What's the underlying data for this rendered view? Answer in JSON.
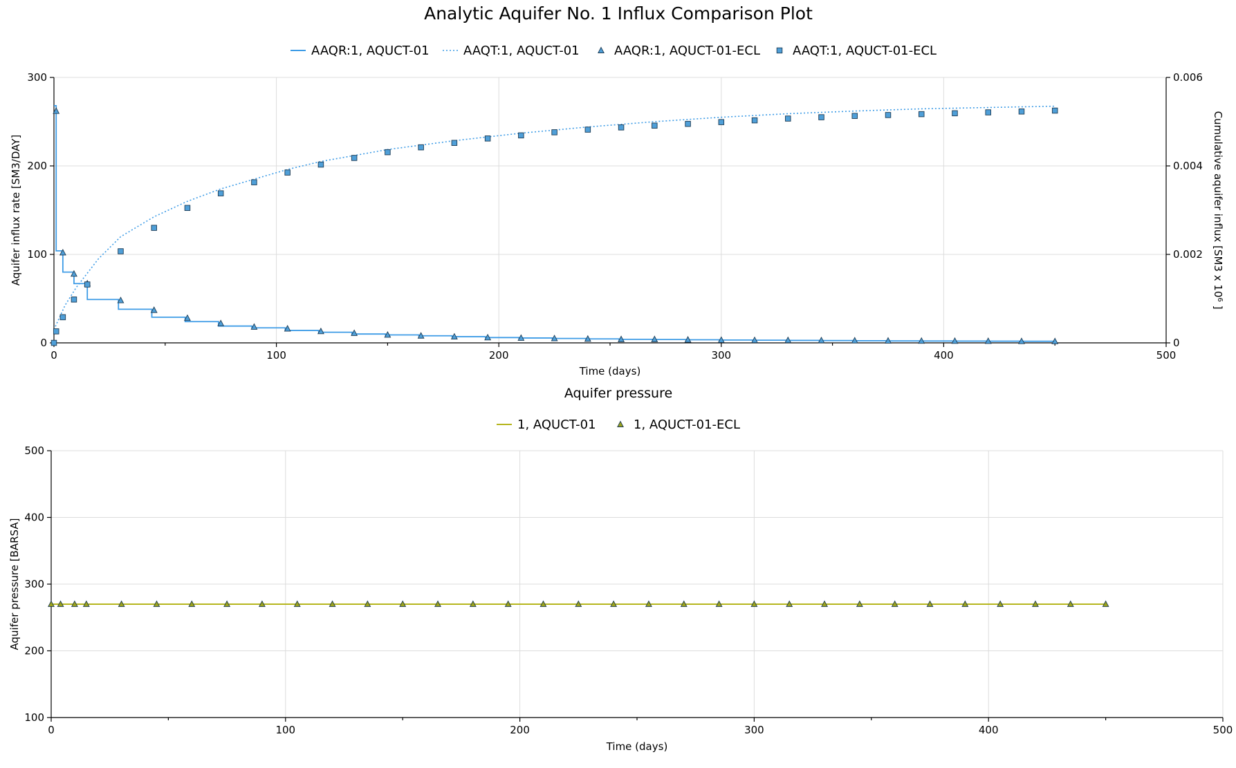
{
  "title": "Analytic Aquifer No. 1 Influx Comparison Plot",
  "colors": {
    "blue": "#3c9be6",
    "marker_fill_blue": "#4f9fd8",
    "olive": "#b5b51c",
    "marker_fill_olive": "#9aa21c",
    "grid": "#dcdcdc"
  },
  "chart_data": [
    {
      "type": "line",
      "title": "",
      "xlabel": "Time (days)",
      "ylabel": "Aquifer influx rate [SM3/DAY]",
      "y2label": "Cumulative aquifer influx [SM3 x 10^6 ]",
      "xlim": [
        0,
        500
      ],
      "ylim": [
        0,
        300
      ],
      "y2lim": [
        0,
        0.006
      ],
      "xticks": [
        "0",
        "100",
        "200",
        "300",
        "400",
        "500"
      ],
      "yticks": [
        "0",
        "100",
        "200",
        "300"
      ],
      "y2ticks": [
        "0",
        "0.002",
        "0.004",
        "0.006"
      ],
      "grid": true,
      "legend_position": "top-center",
      "legend": [
        {
          "label": "AAQR:1, AQUCT-01",
          "style": "solid-line"
        },
        {
          "label": "AAQT:1, AQUCT-01",
          "style": "dotted-line"
        },
        {
          "label": "AAQR:1, AQUCT-01-ECL",
          "style": "triangle-marker"
        },
        {
          "label": "AAQT:1, AQUCT-01-ECL",
          "style": "square-marker"
        }
      ],
      "series": [
        {
          "name": "AAQR:1, AQUCT-01",
          "axis": "left",
          "style": "step",
          "x": [
            0,
            1,
            4,
            9,
            15,
            29,
            44,
            59,
            74,
            89,
            104,
            119,
            134,
            149,
            164,
            179,
            194,
            209,
            224,
            239,
            254,
            269,
            284,
            299,
            314,
            329,
            344,
            359,
            374,
            389,
            404,
            419,
            434,
            450
          ],
          "y": [
            268,
            104,
            80,
            67,
            49,
            38,
            29,
            24,
            19,
            17,
            14,
            12,
            10,
            9,
            8,
            7,
            6,
            5.5,
            5,
            4.5,
            4,
            3.8,
            3.5,
            3.2,
            3,
            2.8,
            2.6,
            2.4,
            2.2,
            2.1,
            2,
            1.9,
            1.8,
            1.7
          ]
        },
        {
          "name": "AAQT:1, AQUCT-01",
          "axis": "right",
          "style": "dotted",
          "x": [
            0,
            5,
            10,
            20,
            30,
            45,
            60,
            75,
            90,
            105,
            120,
            150,
            180,
            210,
            240,
            270,
            300,
            330,
            360,
            390,
            420,
            450
          ],
          "y": [
            0.0003,
            0.00085,
            0.00125,
            0.0019,
            0.0024,
            0.00285,
            0.0032,
            0.00348,
            0.0037,
            0.00392,
            0.0041,
            0.00437,
            0.00457,
            0.00474,
            0.00488,
            0.005,
            0.0051,
            0.00518,
            0.00524,
            0.00529,
            0.00532,
            0.00535
          ]
        },
        {
          "name": "AAQR:1, AQUCT-01-ECL",
          "axis": "left",
          "style": "triangle",
          "x": [
            1,
            4,
            9,
            15,
            30,
            45,
            60,
            75,
            90,
            105,
            120,
            135,
            150,
            165,
            180,
            195,
            210,
            225,
            240,
            255,
            270,
            285,
            300,
            315,
            330,
            345,
            360,
            375,
            390,
            405,
            420,
            435,
            450
          ],
          "y": [
            262,
            102,
            78,
            67,
            48,
            37,
            28,
            22,
            18,
            16,
            13,
            11,
            9,
            8,
            7,
            6,
            5.5,
            5,
            4.5,
            4,
            4,
            3.5,
            3.2,
            3,
            3,
            2.8,
            2.6,
            2.4,
            2.2,
            2.1,
            2,
            1.8,
            1.7
          ]
        },
        {
          "name": "AAQT:1, AQUCT-01-ECL",
          "axis": "right",
          "style": "square",
          "x": [
            0,
            1,
            4,
            9,
            15,
            30,
            45,
            60,
            75,
            90,
            105,
            120,
            135,
            150,
            165,
            180,
            195,
            210,
            225,
            240,
            255,
            270,
            285,
            300,
            315,
            330,
            345,
            360,
            375,
            390,
            405,
            420,
            435,
            450
          ],
          "y": [
            0.0,
            0.00026,
            0.00058,
            0.00098,
            0.00132,
            0.00207,
            0.0026,
            0.00305,
            0.00338,
            0.00363,
            0.00385,
            0.00403,
            0.00418,
            0.00431,
            0.00442,
            0.00452,
            0.00462,
            0.00469,
            0.00476,
            0.00482,
            0.00487,
            0.00491,
            0.00495,
            0.00499,
            0.00503,
            0.00507,
            0.0051,
            0.00513,
            0.00515,
            0.00517,
            0.00519,
            0.00521,
            0.00523,
            0.00525
          ]
        }
      ]
    },
    {
      "type": "line",
      "title": "Aquifer pressure",
      "xlabel": "Time (days)",
      "ylabel": "Aquifer pressure [BARSA]",
      "xlim": [
        0,
        500
      ],
      "ylim": [
        100,
        500
      ],
      "xticks": [
        "0",
        "100",
        "200",
        "300",
        "400",
        "500"
      ],
      "yticks": [
        "100",
        "200",
        "300",
        "400",
        "500"
      ],
      "grid": true,
      "legend_position": "top-center",
      "legend": [
        {
          "label": "1, AQUCT-01",
          "style": "solid-line"
        },
        {
          "label": "1, AQUCT-01-ECL",
          "style": "triangle-marker"
        }
      ],
      "series": [
        {
          "name": "1, AQUCT-01",
          "style": "line",
          "x": [
            0,
            450
          ],
          "y": [
            270,
            270
          ]
        },
        {
          "name": "1, AQUCT-01-ECL",
          "style": "triangle",
          "x": [
            0,
            4,
            10,
            15,
            30,
            45,
            60,
            75,
            90,
            105,
            120,
            135,
            150,
            165,
            180,
            195,
            210,
            225,
            240,
            255,
            270,
            285,
            300,
            315,
            330,
            345,
            360,
            375,
            390,
            405,
            420,
            435,
            450
          ],
          "y": [
            270,
            270,
            270,
            270,
            270,
            270,
            270,
            270,
            270,
            270,
            270,
            270,
            270,
            270,
            270,
            270,
            270,
            270,
            270,
            270,
            270,
            270,
            270,
            270,
            270,
            270,
            270,
            270,
            270,
            270,
            270,
            270,
            270
          ]
        }
      ]
    }
  ]
}
